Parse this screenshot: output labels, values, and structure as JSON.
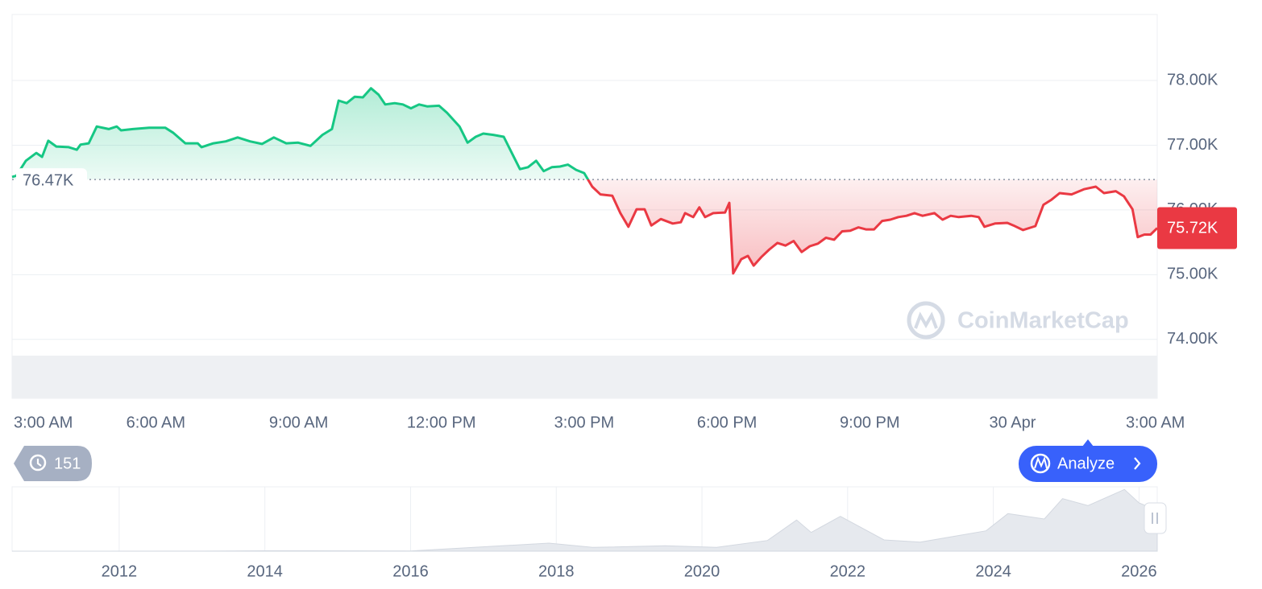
{
  "chart_data": [
    {
      "type": "line",
      "x": [
        -0.02,
        0.07,
        0.27,
        0.49,
        0.61,
        0.74,
        0.91,
        1.17,
        1.34,
        1.42,
        1.59,
        1.76,
        2.01,
        2.18,
        2.27,
        2.52,
        2.86,
        3.2,
        3.37,
        3.62,
        3.88,
        3.96,
        4.21,
        4.47,
        4.72,
        4.98,
        5.23,
        5.48,
        5.74,
        5.99,
        6.25,
        6.5,
        6.7,
        6.84,
        7.01,
        7.18,
        7.35,
        7.52,
        7.68,
        7.82,
        8.02,
        8.19,
        8.36,
        8.53,
        8.7,
        8.95,
        9.12,
        9.38,
        9.55,
        9.72,
        9.88,
        10.09,
        10.31,
        10.48,
        10.65,
        10.82,
        10.99,
        11.15,
        11.32,
        11.49,
        11.66,
        11.83,
        12.0,
        12.17,
        12.34,
        12.59,
        12.76,
        12.93,
        13.1,
        13.27,
        13.41,
        13.61,
        13.86,
        14.03,
        14.12,
        14.29,
        14.42,
        14.54,
        14.71,
        14.96,
        15.05,
        15.13,
        15.3,
        15.44,
        15.56,
        15.72,
        15.89,
        16.06,
        16.23,
        16.4,
        16.57,
        16.74,
        16.91,
        17.08,
        17.25,
        17.42,
        17.59,
        17.76,
        17.92,
        18.09,
        18.26,
        18.43,
        18.6,
        18.77,
        18.94,
        19.11,
        19.36,
        19.53,
        19.7,
        19.87,
        20.13,
        20.29,
        20.41,
        20.63,
        20.89,
        21.02,
        21.22,
        21.48,
        21.65,
        21.82,
        21.99,
        22.24,
        22.5,
        22.75,
        22.92,
        23.17,
        23.34,
        23.52,
        23.63,
        23.77,
        23.9,
        24.04
      ],
      "values": [
        76510,
        76530,
        76760,
        76880,
        76820,
        77070,
        76980,
        76970,
        76930,
        77010,
        77030,
        77290,
        77250,
        77290,
        77230,
        77250,
        77270,
        77270,
        77190,
        77030,
        77030,
        76970,
        77030,
        77060,
        77120,
        77060,
        77020,
        77120,
        77030,
        77040,
        76990,
        77160,
        77250,
        77690,
        77650,
        77750,
        77740,
        77880,
        77780,
        77630,
        77650,
        77630,
        77570,
        77630,
        77600,
        77610,
        77500,
        77290,
        77040,
        77130,
        77180,
        77160,
        77130,
        76880,
        76630,
        76660,
        76760,
        76600,
        76660,
        76670,
        76700,
        76620,
        76570,
        76360,
        76240,
        76220,
        75950,
        75740,
        76010,
        76010,
        75760,
        75860,
        75790,
        75810,
        75950,
        75890,
        76040,
        75890,
        75950,
        75960,
        76110,
        75020,
        75240,
        75290,
        75140,
        75270,
        75390,
        75490,
        75450,
        75520,
        75350,
        75440,
        75480,
        75570,
        75540,
        75670,
        75680,
        75730,
        75700,
        75700,
        75830,
        75850,
        75890,
        75910,
        75950,
        75910,
        75950,
        75850,
        75910,
        75890,
        75910,
        75890,
        75740,
        75790,
        75800,
        75760,
        75690,
        75750,
        76080,
        76160,
        76260,
        76240,
        76320,
        76360,
        76260,
        76290,
        76210,
        76010,
        75580,
        75620,
        75620,
        75720
      ],
      "color_above": "#16c784",
      "color_below": "#ea3943",
      "xlim": [
        -0.02,
        24.04
      ],
      "xticks": [
        {
          "value": 0,
          "label": "3:00 AM"
        },
        {
          "value": 3,
          "label": "6:00 AM"
        },
        {
          "value": 6,
          "label": "9:00 AM"
        },
        {
          "value": 9,
          "label": "12:00 PM"
        },
        {
          "value": 12,
          "label": "3:00 PM"
        },
        {
          "value": 15,
          "label": "6:00 PM"
        },
        {
          "value": 18,
          "label": "9:00 PM"
        },
        {
          "value": 21,
          "label": "30 Apr"
        },
        {
          "value": 24,
          "label": "3:00 AM"
        }
      ],
      "ylim": [
        73090,
        79020
      ],
      "yticks": [
        {
          "value": 74000,
          "label": "74.00K"
        },
        {
          "value": 75000,
          "label": "75.00K"
        },
        {
          "value": 76000,
          "label": "76.00K"
        },
        {
          "value": 77000,
          "label": "77.00K"
        },
        {
          "value": 78000,
          "label": "78.00K"
        }
      ],
      "grid": true,
      "reference_line": {
        "value": 76470,
        "label": "76.47K"
      },
      "last_price": {
        "value": 75720,
        "label": "75.72K"
      },
      "watermark": "CoinMarketCap"
    },
    {
      "type": "area",
      "x": [
        2010.53,
        2013.0,
        2014.0,
        2016.0,
        2017.9,
        2018.5,
        2019.5,
        2020.2,
        2020.9,
        2021.3,
        2021.5,
        2021.9,
        2022.5,
        2023.0,
        2023.9,
        2024.2,
        2024.7,
        2024.95,
        2025.3,
        2025.8,
        2026.0,
        2026.25
      ],
      "values": [
        0,
        100,
        800,
        400,
        15000,
        7000,
        10000,
        7000,
        20000,
        58000,
        35000,
        65000,
        21000,
        17000,
        38000,
        70000,
        60000,
        98000,
        85000,
        115000,
        90000,
        76000
      ],
      "color": "#e6e9ee",
      "xlim": [
        2010.53,
        2026.25
      ],
      "ylim": [
        0,
        120000
      ],
      "xticks": [
        2012,
        2014,
        2016,
        2018,
        2020,
        2022,
        2024,
        2026
      ]
    }
  ],
  "ui": {
    "history_badge": "151",
    "analyze_button": "Analyze"
  }
}
